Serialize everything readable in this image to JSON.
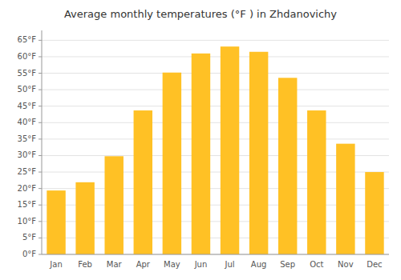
{
  "chart_data": {
    "type": "bar",
    "title": "Average monthly temperatures (°F ) in Zhdanovichy",
    "categories": [
      "Jan",
      "Feb",
      "Mar",
      "Apr",
      "May",
      "Jun",
      "Jul",
      "Aug",
      "Sep",
      "Oct",
      "Nov",
      "Dec"
    ],
    "values": [
      19.4,
      21.9,
      29.8,
      43.7,
      55.2,
      61.0,
      63.1,
      61.5,
      53.6,
      43.7,
      33.6,
      25.0
    ],
    "color": "#FFC125",
    "ylim": [
      0,
      68
    ],
    "yticks": [
      {
        "value": 0,
        "label": "0°F"
      },
      {
        "value": 5,
        "label": "5°F"
      },
      {
        "value": 10,
        "label": "10°F"
      },
      {
        "value": 15,
        "label": "15°F"
      },
      {
        "value": 20,
        "label": "20°F"
      },
      {
        "value": 25,
        "label": "25°F"
      },
      {
        "value": 30,
        "label": "30°F"
      },
      {
        "value": 35,
        "label": "35°F"
      },
      {
        "value": 40,
        "label": "40°F"
      },
      {
        "value": 45,
        "label": "45°F"
      },
      {
        "value": 50,
        "label": "50°F"
      },
      {
        "value": 55,
        "label": "55°F"
      },
      {
        "value": 60,
        "label": "60°F"
      },
      {
        "value": 65,
        "label": "65°F"
      }
    ],
    "grid": true
  }
}
